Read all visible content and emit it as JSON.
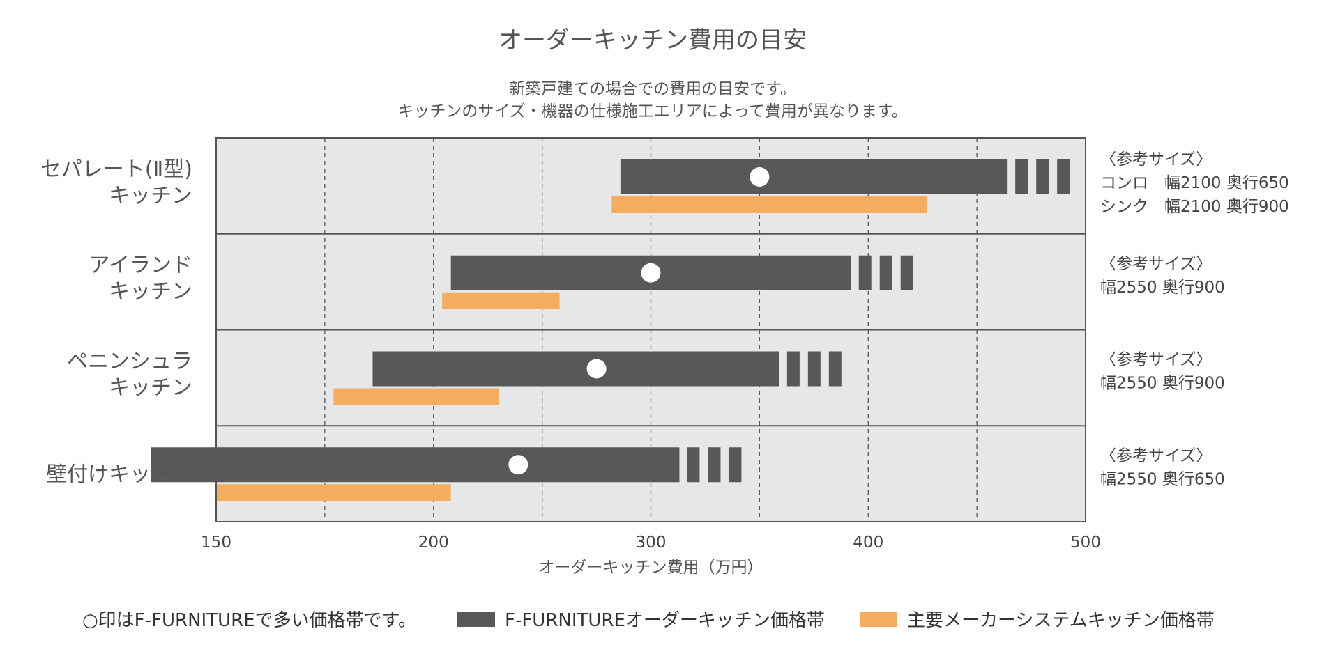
{
  "title": "オーダーキッチン費用の目安",
  "subtitle_lines": [
    "新築戸建ての場合での費用の目安です。",
    "キッチンのサイズ・機器の仕様施工エリアによって費用が異なります。"
  ],
  "legend": {
    "circle_note": "○印はF-FURNITUREで多い価格帯です。",
    "dark": "F-FURNITUREオーダーキッチン価格帯",
    "orange": "主要メーカーシステムキッチン価格帯"
  },
  "colors": {
    "dark": "#58585a",
    "orange": "#f4ad5f",
    "plot_bg": "#e6e7e8",
    "frame": "#555555"
  },
  "chart_data": {
    "type": "bar",
    "orientation": "horizontal-range",
    "title": "オーダーキッチン費用の目安",
    "xlabel": "オーダーキッチン費用（万円）",
    "xlim": [
      150,
      500
    ],
    "xticks": [
      150,
      200,
      300,
      400,
      500
    ],
    "grid": "dashed-vertical",
    "legend_position": "bottom",
    "categories": [
      {
        "label_lines": [
          "セパレート(Ⅱ型)",
          "キッチン"
        ],
        "reference": [
          "〈参考サイズ〉",
          "コンロ　幅2100 奥行650",
          "シンク　幅2100 奥行900"
        ]
      },
      {
        "label_lines": [
          "アイランド",
          "キッチン"
        ],
        "reference": [
          "〈参考サイズ〉",
          "幅2550 奥行900"
        ]
      },
      {
        "label_lines": [
          "ペニンシュラ",
          "キッチン"
        ],
        "reference": [
          "〈参考サイズ〉",
          "幅2550 奥行900"
        ]
      },
      {
        "label_lines": [
          "壁付けキッチン"
        ],
        "reference": [
          "〈参考サイズ〉",
          "幅2550 奥行650"
        ]
      }
    ],
    "series": [
      {
        "name": "F-FURNITUREオーダーキッチン価格帯",
        "start": [
          286,
          208,
          186,
          135
        ],
        "end": [
          493,
          421,
          388,
          342
        ],
        "open_ended": true
      },
      {
        "name": "主要メーカーシステムキッチン価格帯",
        "start": [
          282,
          204,
          177,
          150
        ],
        "end": [
          427,
          258,
          230,
          208
        ]
      },
      {
        "name": "○印はF-FURNITUREで多い価格帯です。",
        "values": [
          350,
          300,
          275,
          239
        ]
      }
    ]
  }
}
